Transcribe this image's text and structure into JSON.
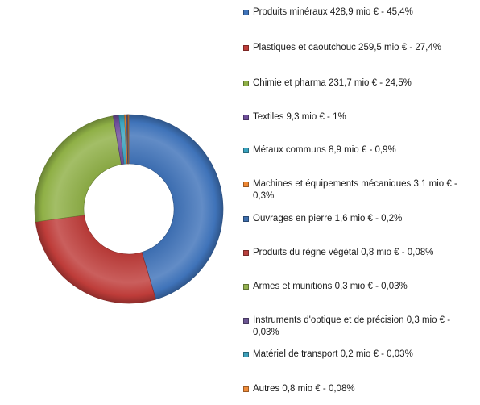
{
  "chart_data": {
    "type": "pie",
    "variant": "donut",
    "unit": "mio €",
    "legend_position": "right",
    "categories": [
      "Produits minéraux",
      "Plastiques et caoutchouc",
      "Chimie et pharma",
      "Textiles",
      "Métaux communs",
      "Machines et équipements mécaniques",
      "Ouvrages en pierre",
      "Produits du règne végétal",
      "Armes et munitions",
      "Instruments d'optique et de précision",
      "Matériel de transport",
      "Autres"
    ],
    "values": [
      428.9,
      259.5,
      231.7,
      9.3,
      8.9,
      3.1,
      1.6,
      0.8,
      0.3,
      0.3,
      0.2,
      0.8
    ],
    "percent_labels": [
      "45,4%",
      "27,4%",
      "24,5%",
      "1%",
      "0,9%",
      "0,3%",
      "0,2%",
      "0,08%",
      "0,03%",
      "0,03%",
      "0,03%",
      "0,08%"
    ],
    "legend_entries": [
      "Produits minéraux 428,9 mio € - 45,4%",
      "Plastiques et caoutchouc 259,5 mio € - 27,4%",
      "Chimie et pharma 231,7 mio € - 24,5%",
      "Textiles 9,3 mio € - 1%",
      "Métaux communs 8,9 mio € - 0,9%",
      "Machines et équipements mécaniques 3,1 mio € - 0,3%",
      "Ouvrages en pierre 1,6 mio € - 0,2%",
      "Produits du règne végétal 0,8 mio € - 0,08%",
      "Armes et munitions 0,3 mio € - 0,03%",
      "Instruments d'optique et de précision 0,3 mio € - 0,03%",
      "Matériel de transport 0,2 mio € - 0,03%",
      "Autres 0,8 mio € - 0,08%"
    ],
    "colors": [
      "#3f73b9",
      "#be3c39",
      "#8fb046",
      "#6e4e9a",
      "#3aa3bf",
      "#ee8733",
      "#3e6fae",
      "#b8403d",
      "#94b14f",
      "#6c5693",
      "#3ea0ba",
      "#f08c3a"
    ]
  }
}
